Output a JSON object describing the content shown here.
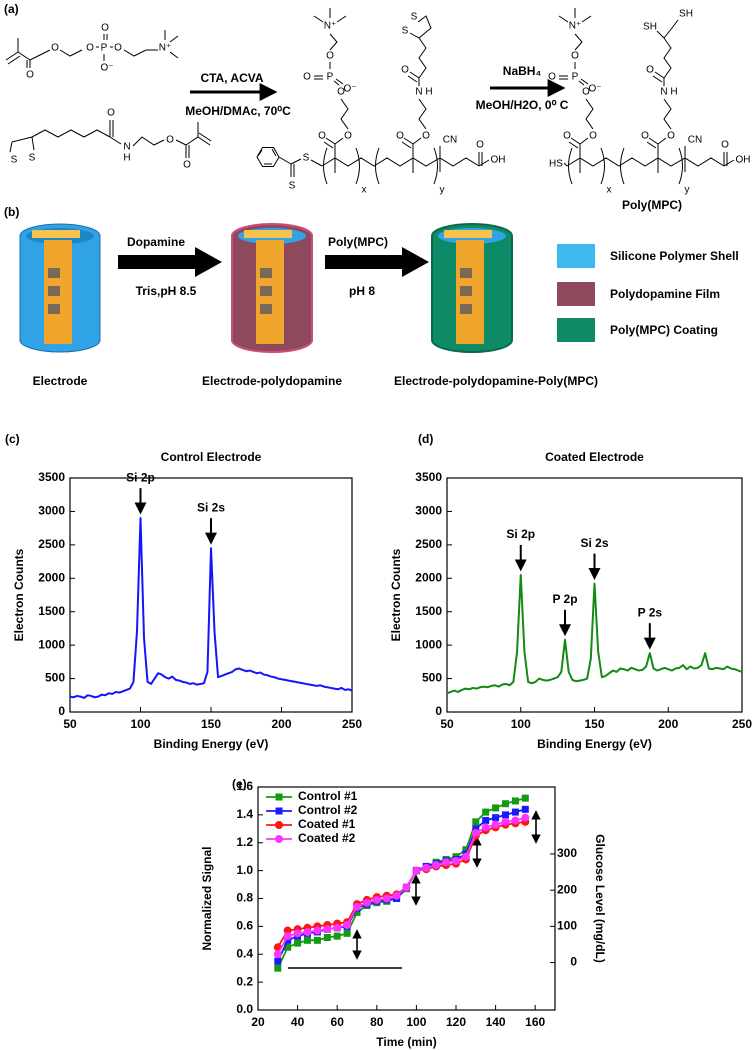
{
  "panel_a": {
    "label": "(a)",
    "monomer_1_atoms": [
      "O",
      "O",
      "O",
      "P",
      "O",
      "O⁻",
      "O",
      "N⁺"
    ],
    "monomer_2_atoms": [
      "S",
      "S",
      "O",
      "N",
      "H",
      "O",
      "O"
    ],
    "reagents_1": [
      "CTA, ACVA",
      "MeOH/DMAc, 70⁰C"
    ],
    "polymer_1_atoms": [
      "S",
      "S",
      "O",
      "O",
      "O",
      "P",
      "O",
      "O⁻",
      "O",
      "N⁺",
      "O",
      "O",
      "N",
      "H",
      "O",
      "S",
      "S",
      "x",
      "y",
      "CN",
      "O",
      "OH"
    ],
    "reagents_2": [
      "NaBH₄",
      "MeOH/H2O, 0⁰ C"
    ],
    "polymer_2_atoms": [
      "HS",
      "O",
      "O",
      "O",
      "P",
      "O",
      "O⁻",
      "O",
      "N⁺",
      "O",
      "O",
      "N",
      "H",
      "O",
      "SH",
      "SH",
      "x",
      "y",
      "CN",
      "O",
      "OH"
    ],
    "product_label": "Poly(MPC)"
  },
  "panel_b": {
    "label": "(b)",
    "step_1": [
      "Dopamine",
      "Tris,pH 8.5"
    ],
    "step_2": [
      "Poly(MPC)",
      "pH 8"
    ],
    "stages": [
      "Electrode",
      "Electrode-polydopamine",
      "Electrode-polydopamine-Poly(MPC)"
    ],
    "legend": [
      "Silicone Polymer Shell",
      "Polydopamine Film",
      "Poly(MPC) Coating"
    ]
  },
  "chart_data": [
    {
      "type": "line",
      "panel_label": "(c)",
      "title": "Control Electrode",
      "xlabel": "Binding Energy (eV)",
      "ylabel": "Electron Counts",
      "color": "#1414ff",
      "x": [
        50,
        52.5,
        55,
        57.5,
        60,
        62.5,
        65,
        67.5,
        70,
        72.5,
        75,
        77.5,
        80,
        82.5,
        85,
        87.5,
        90,
        92.5,
        95,
        97.5,
        100,
        102.5,
        105,
        107.5,
        110,
        112.5,
        115,
        117.5,
        120,
        122.5,
        125,
        127.5,
        130,
        132.5,
        135,
        137.5,
        140,
        142.5,
        145,
        147.5,
        150,
        152.5,
        155,
        157.5,
        160,
        162.5,
        165,
        167.5,
        170,
        172.5,
        175,
        177.5,
        180,
        182.5,
        185,
        187.5,
        190,
        192.5,
        195,
        197.5,
        200,
        202.5,
        205,
        207.5,
        210,
        212.5,
        215,
        217.5,
        220,
        222.5,
        225,
        227.5,
        230,
        232.5,
        235,
        237.5,
        240,
        242.5,
        245,
        247.5,
        250
      ],
      "values": [
        230,
        220,
        240,
        230,
        210,
        250,
        240,
        220,
        230,
        260,
        250,
        280,
        270,
        300,
        290,
        310,
        330,
        350,
        450,
        1200,
        2900,
        1100,
        450,
        420,
        500,
        580,
        560,
        520,
        500,
        530,
        480,
        470,
        450,
        440,
        420,
        430,
        410,
        420,
        430,
        600,
        2450,
        1200,
        520,
        540,
        560,
        580,
        600,
        640,
        650,
        630,
        610,
        620,
        600,
        580,
        590,
        560,
        550,
        530,
        520,
        500,
        490,
        480,
        470,
        460,
        450,
        440,
        430,
        420,
        410,
        400,
        390,
        400,
        380,
        370,
        360,
        350,
        340,
        360,
        330,
        340,
        320
      ],
      "xlim": [
        50,
        250
      ],
      "xticks": [
        50,
        100,
        150,
        200,
        250
      ],
      "ylim": [
        0,
        3500
      ],
      "yticks": [
        0,
        500,
        1000,
        1500,
        2000,
        2500,
        3000,
        3500
      ],
      "annotations": [
        {
          "text": "Si 2p",
          "x": 100
        },
        {
          "text": "Si 2s",
          "x": 150
        }
      ]
    },
    {
      "type": "line",
      "panel_label": "(d)",
      "title": "Coated Electrode",
      "xlabel": "Binding Energy (eV)",
      "ylabel": "Electron Counts",
      "color": "#138a13",
      "x": [
        50,
        52.5,
        55,
        57.5,
        60,
        62.5,
        65,
        67.5,
        70,
        72.5,
        75,
        77.5,
        80,
        82.5,
        85,
        87.5,
        90,
        92.5,
        95,
        97.5,
        100,
        102.5,
        105,
        107.5,
        110,
        112.5,
        115,
        117.5,
        120,
        122.5,
        125,
        127.5,
        130,
        132.5,
        135,
        137.5,
        140,
        142.5,
        145,
        147.5,
        150,
        152.5,
        155,
        157.5,
        160,
        162.5,
        165,
        167.5,
        170,
        172.5,
        175,
        177.5,
        180,
        182.5,
        185,
        187.5,
        190,
        192.5,
        195,
        197.5,
        200,
        202.5,
        205,
        207.5,
        210,
        212.5,
        215,
        217.5,
        220,
        222.5,
        225,
        227.5,
        230,
        232.5,
        235,
        237.5,
        240,
        242.5,
        245,
        247.5,
        250
      ],
      "values": [
        280,
        300,
        320,
        300,
        330,
        350,
        340,
        360,
        350,
        370,
        380,
        370,
        390,
        400,
        380,
        410,
        420,
        400,
        450,
        900,
        2050,
        900,
        450,
        430,
        450,
        500,
        480,
        470,
        480,
        500,
        520,
        600,
        1080,
        600,
        480,
        460,
        470,
        480,
        500,
        800,
        1920,
        900,
        520,
        540,
        580,
        620,
        600,
        650,
        640,
        620,
        660,
        640,
        620,
        630,
        680,
        880,
        650,
        620,
        640,
        660,
        640,
        620,
        650,
        660,
        700,
        640,
        680,
        650,
        660,
        700,
        880,
        650,
        640,
        660,
        650,
        640,
        680,
        650,
        640,
        620,
        600
      ],
      "xlim": [
        50,
        250
      ],
      "xticks": [
        50,
        100,
        150,
        200,
        250
      ],
      "ylim": [
        0,
        3500
      ],
      "yticks": [
        0,
        500,
        1000,
        1500,
        2000,
        2500,
        3000,
        3500
      ],
      "annotations": [
        {
          "text": "Si 2p",
          "x": 100
        },
        {
          "text": "P 2p",
          "x": 130
        },
        {
          "text": "Si 2s",
          "x": 150
        },
        {
          "text": "P 2s",
          "x": 187.5
        }
      ]
    },
    {
      "type": "line",
      "panel_label": "(e)",
      "xlabel": "Time (min)",
      "ylabel": "Normalized Signal",
      "y2label": "Glucose Level (mg/dL)",
      "x": [
        30,
        35,
        40,
        45,
        50,
        55,
        60,
        65,
        70,
        75,
        80,
        85,
        90,
        95,
        100,
        105,
        110,
        115,
        120,
        125,
        130,
        135,
        140,
        145,
        150,
        155
      ],
      "series": [
        {
          "name": "Control #1",
          "color": "#139a13",
          "marker": "square",
          "values": [
            0.3,
            0.45,
            0.48,
            0.5,
            0.5,
            0.52,
            0.53,
            0.55,
            0.7,
            0.75,
            0.77,
            0.78,
            0.8,
            0.87,
            1.0,
            1.03,
            1.06,
            1.08,
            1.1,
            1.15,
            1.35,
            1.42,
            1.45,
            1.48,
            1.5,
            1.52
          ]
        },
        {
          "name": "Control #2",
          "color": "#1a1aff",
          "marker": "square",
          "values": [
            0.35,
            0.5,
            0.53,
            0.55,
            0.56,
            0.58,
            0.59,
            0.6,
            0.73,
            0.76,
            0.78,
            0.79,
            0.8,
            0.88,
            1.0,
            1.03,
            1.05,
            1.07,
            1.08,
            1.12,
            1.3,
            1.36,
            1.38,
            1.4,
            1.42,
            1.44
          ]
        },
        {
          "name": "Coated #1",
          "color": "#ff1414",
          "marker": "circle",
          "values": [
            0.45,
            0.57,
            0.58,
            0.59,
            0.6,
            0.61,
            0.62,
            0.63,
            0.76,
            0.79,
            0.81,
            0.82,
            0.83,
            0.88,
            1.0,
            1.01,
            1.03,
            1.04,
            1.05,
            1.08,
            1.25,
            1.29,
            1.31,
            1.33,
            1.34,
            1.35
          ]
        },
        {
          "name": "Coated #2",
          "color": "#ff33ff",
          "marker": "circle",
          "values": [
            0.4,
            0.53,
            0.55,
            0.56,
            0.57,
            0.58,
            0.59,
            0.61,
            0.74,
            0.77,
            0.79,
            0.8,
            0.82,
            0.88,
            1.0,
            1.02,
            1.04,
            1.06,
            1.07,
            1.1,
            1.27,
            1.31,
            1.33,
            1.35,
            1.36,
            1.38
          ]
        }
      ],
      "xlim": [
        20,
        170
      ],
      "xticks": [
        20,
        40,
        60,
        80,
        100,
        120,
        140,
        160
      ],
      "ylim": [
        0,
        1.6
      ],
      "yticks": [
        {
          "value": 0,
          "label": "0.0"
        },
        {
          "value": 0.2,
          "label": "0.2"
        },
        {
          "value": 0.4,
          "label": "0.4"
        },
        {
          "value": 0.6,
          "label": "0.6"
        },
        {
          "value": 0.8,
          "label": "0.8"
        },
        {
          "value": 1,
          "label": "1.0"
        },
        {
          "value": 1.2,
          "label": "1.2"
        },
        {
          "value": 1.4,
          "label": "1.4"
        },
        {
          "value": 1.6,
          "label": "1.6"
        }
      ],
      "y2lim": [
        -131,
        485
      ],
      "y2ticks": [
        0,
        100,
        200,
        300
      ],
      "legend": "upper left"
    }
  ]
}
